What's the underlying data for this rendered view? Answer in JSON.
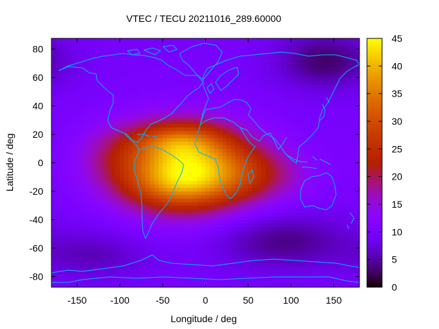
{
  "chart_data": {
    "type": "heatmap",
    "title": "VTEC / TECU 20211016_289.60000",
    "xlabel": "Longitude / deg",
    "ylabel": "Latitude / deg",
    "xlim": [
      -180,
      180
    ],
    "ylim": [
      -87.5,
      87.5
    ],
    "x_ticks": [
      -150,
      -100,
      -50,
      0,
      50,
      100,
      150
    ],
    "y_ticks": [
      80,
      60,
      40,
      20,
      0,
      -20,
      -40,
      -60,
      -80
    ],
    "colorbar": {
      "range": [
        0,
        45
      ],
      "ticks": [
        45,
        40,
        35,
        30,
        25,
        20,
        15,
        10,
        5,
        0
      ],
      "colormap": "gnuplot (black-purple-red-orange-yellow)"
    },
    "grid": false,
    "background_level_tecu": 10,
    "features": [
      {
        "name": "equatorial-peak",
        "lon": -25,
        "lat": -3,
        "peak_tecu": 42,
        "lon_spread": 52,
        "lat_spread": 20
      },
      {
        "name": "northern-crest",
        "lon": -32,
        "lat": 16,
        "peak_tecu": 8,
        "lon_spread": 35,
        "lat_spread": 8
      },
      {
        "name": "southern-crest",
        "lon": -35,
        "lat": -18,
        "peak_tecu": 5,
        "lon_spread": 40,
        "lat_spread": 10
      },
      {
        "name": "indian-ocean-tail",
        "lon": 55,
        "lat": -8,
        "peak_tecu": 8,
        "lon_spread": 45,
        "lat_spread": 14
      },
      {
        "name": "east-pacific-tail",
        "lon": -110,
        "lat": 5,
        "peak_tecu": 4,
        "lon_spread": 30,
        "lat_spread": 16
      },
      {
        "name": "north-asia-depletion",
        "lon": 140,
        "lat": 72,
        "peak_tecu": -7,
        "lon_spread": 40,
        "lat_spread": 14
      },
      {
        "name": "southern-ocean-depletion",
        "lon": 90,
        "lat": -55,
        "peak_tecu": -6,
        "lon_spread": 55,
        "lat_spread": 14
      },
      {
        "name": "south-pacific-depletion",
        "lon": -130,
        "lat": -65,
        "peak_tecu": -4,
        "lon_spread": 45,
        "lat_spread": 12
      }
    ]
  }
}
